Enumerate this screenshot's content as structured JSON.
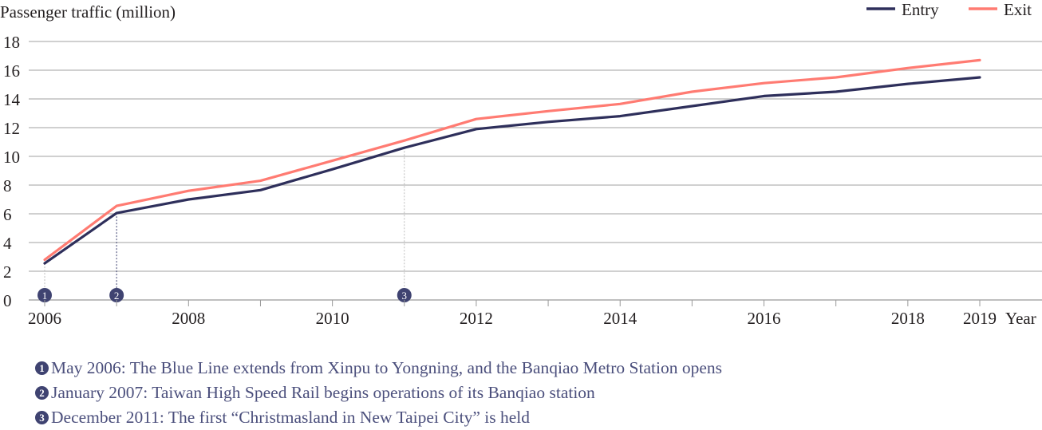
{
  "chart_data": {
    "type": "line",
    "ylabel": "Passenger traffic (million)",
    "xlabel": "Year",
    "ylim": [
      0,
      18
    ],
    "yticks": [
      0,
      2,
      4,
      6,
      8,
      10,
      12,
      14,
      16,
      18
    ],
    "xlim": [
      2006,
      2019
    ],
    "xtick_labels": [
      "2006",
      "2008",
      "2010",
      "2012",
      "2014",
      "2016",
      "2018",
      "2019"
    ],
    "grid": true,
    "legend_position": "top-right",
    "x": [
      2006,
      2007,
      2008,
      2009,
      2010,
      2011,
      2012,
      2013,
      2014,
      2015,
      2016,
      2017,
      2018,
      2019
    ],
    "series": [
      {
        "name": "Entry",
        "color": "#2e2f5b",
        "values": [
          2.55,
          6.05,
          7.0,
          7.65,
          9.1,
          10.6,
          11.9,
          12.4,
          12.8,
          13.5,
          14.2,
          14.5,
          15.05,
          15.5
        ]
      },
      {
        "name": "Exit",
        "color": "#ff7b72",
        "values": [
          2.8,
          6.55,
          7.6,
          8.3,
          9.7,
          11.1,
          12.6,
          13.15,
          13.65,
          14.5,
          15.1,
          15.5,
          16.15,
          16.7
        ]
      }
    ],
    "annotations": [
      {
        "marker": "1",
        "x": 2006,
        "text": "May 2006: The Blue Line extends from Xinpu to Yongning, and the Banqiao Metro Station opens"
      },
      {
        "marker": "2",
        "x": 2007,
        "text": "January 2007: Taiwan High Speed Rail begins operations of its Banqiao station"
      },
      {
        "marker": "3",
        "x": 2011,
        "text": "December 2011: The first “Christmasland in New Taipei City” is held"
      }
    ]
  }
}
